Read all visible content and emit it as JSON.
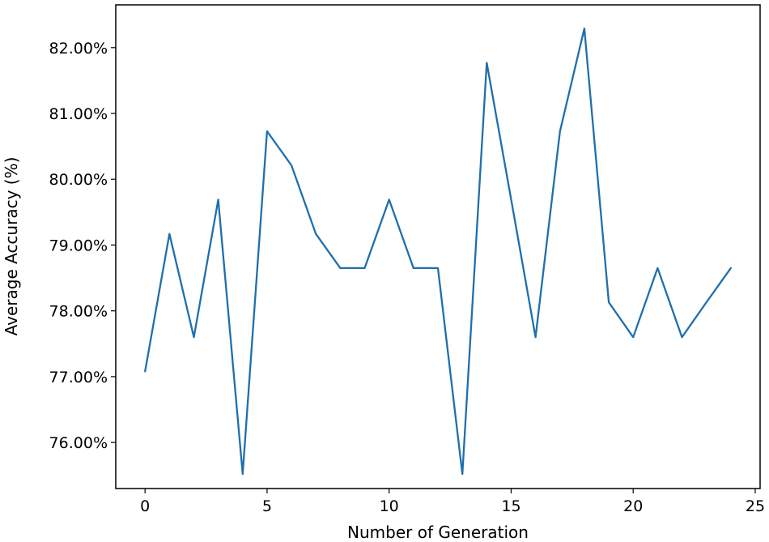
{
  "chart_data": {
    "type": "line",
    "title": "",
    "xlabel": "Number of Generation",
    "ylabel": "Average Accuracy (%)",
    "xlim": [
      -1.2,
      25.2
    ],
    "ylim": [
      75.3,
      82.65
    ],
    "x_ticks": [
      0,
      5,
      10,
      15,
      20,
      25
    ],
    "x_tick_labels": [
      "0",
      "5",
      "10",
      "15",
      "20",
      "25"
    ],
    "y_ticks": [
      76,
      77,
      78,
      79,
      80,
      81,
      82
    ],
    "y_tick_labels": [
      "76.00%",
      "77.00%",
      "78.00%",
      "79.00%",
      "80.00%",
      "81.00%",
      "82.00%"
    ],
    "grid": false,
    "series": [
      {
        "color": "#1f6fad",
        "x": [
          0,
          1,
          2,
          3,
          4,
          5,
          6,
          7,
          8,
          9,
          10,
          11,
          12,
          13,
          14,
          15,
          16,
          17,
          18,
          19,
          20,
          21,
          22,
          23,
          24
        ],
        "y": [
          77.08,
          79.17,
          77.6,
          79.69,
          75.52,
          80.73,
          80.21,
          79.17,
          78.65,
          78.65,
          79.69,
          78.65,
          78.65,
          75.52,
          81.77,
          79.69,
          77.6,
          80.73,
          82.29,
          78.13,
          77.6,
          78.65,
          77.6,
          78.13,
          78.65
        ]
      }
    ]
  }
}
